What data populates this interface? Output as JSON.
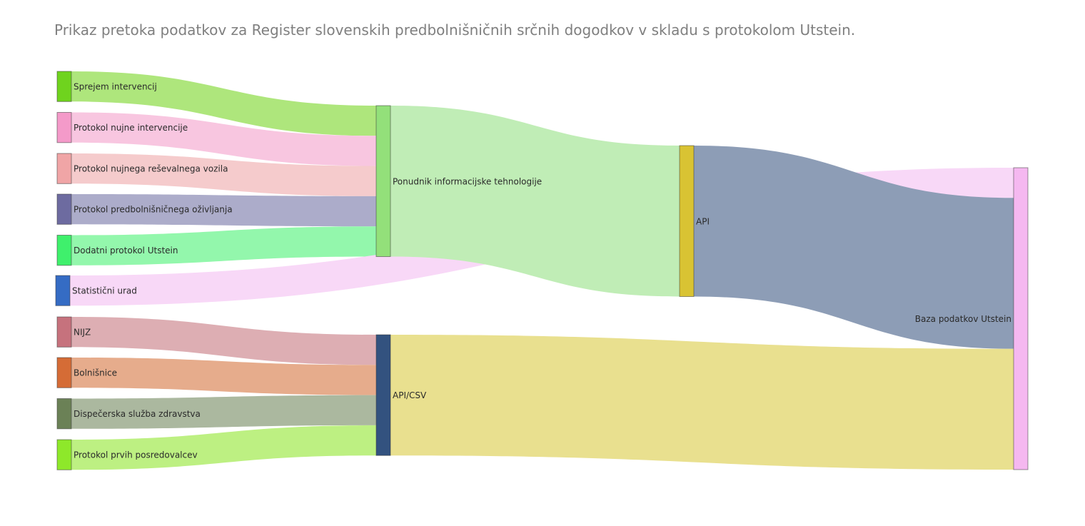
{
  "title": "Prikaz pretoka podatkov za Register slovenskih predbolnišničnih srčnih dogodkov v skladu s protokolom Utstein.",
  "chart_data": {
    "type": "sankey",
    "title": "Prikaz pretoka podatkov za Register slovenskih predbolnišničnih srčnih dogodkov v skladu s protokolom Utstein.",
    "nodes": [
      {
        "id": "sprejem",
        "label": "Sprejem intervencij",
        "color": "#6fd31e"
      },
      {
        "id": "nujne",
        "label": "Protokol nujne intervencije",
        "color": "#f49ac9"
      },
      {
        "id": "vozila",
        "label": "Protokol nujnega reševalnega vozila",
        "color": "#f0a5a6"
      },
      {
        "id": "ozivljanja",
        "label": "Protokol predbolnišničnega oživljanja",
        "color": "#6d6ba0"
      },
      {
        "id": "dodatni",
        "label": "Dodatni protokol Utstein",
        "color": "#3ff06c"
      },
      {
        "id": "statisticni",
        "label": "Statistični urad",
        "color": "#356cc4"
      },
      {
        "id": "nijz",
        "label": "NIJZ",
        "color": "#c6727d"
      },
      {
        "id": "bolnisnice",
        "label": "Bolnišnice",
        "color": "#d56c36"
      },
      {
        "id": "dispecerska",
        "label": "Dispečerska služba zdravstva",
        "color": "#6b8156"
      },
      {
        "id": "posredovalci",
        "label": "Protokol prvih posredovalcev",
        "color": "#8ee82a"
      },
      {
        "id": "ponudnik",
        "label": "Ponudnik informacijske tehnologije",
        "color": "#93e07a"
      },
      {
        "id": "apicsv",
        "label": "API/CSV",
        "color": "#33527f"
      },
      {
        "id": "api",
        "label": "API",
        "color": "#d9c333"
      },
      {
        "id": "baza",
        "label": "Baza podatkov Utstein",
        "color": "#f5b8f0"
      }
    ],
    "links": [
      {
        "source": "sprejem",
        "target": "ponudnik",
        "value": 1,
        "color": "#aee67c"
      },
      {
        "source": "nujne",
        "target": "ponudnik",
        "value": 1,
        "color": "#f8c6e0"
      },
      {
        "source": "vozila",
        "target": "ponudnik",
        "value": 1,
        "color": "#f5cbcc"
      },
      {
        "source": "ozivljanja",
        "target": "ponudnik",
        "value": 1,
        "color": "#acacca"
      },
      {
        "source": "dodatni",
        "target": "ponudnik",
        "value": 1,
        "color": "#93f7ac"
      },
      {
        "source": "statisticni",
        "target": "baza",
        "value": 1,
        "color": "#f8d8f7"
      },
      {
        "source": "nijz",
        "target": "apicsv",
        "value": 1,
        "color": "#ddaeb3"
      },
      {
        "source": "bolnisnice",
        "target": "apicsv",
        "value": 1,
        "color": "#e6ac8c"
      },
      {
        "source": "dispecerska",
        "target": "apicsv",
        "value": 1,
        "color": "#abb89f"
      },
      {
        "source": "posredovalci",
        "target": "apicsv",
        "value": 1,
        "color": "#bdf082"
      },
      {
        "source": "ponudnik",
        "target": "api",
        "value": 5,
        "color": "#c0edb6"
      },
      {
        "source": "api",
        "target": "baza",
        "value": 5,
        "color": "#8d9db6"
      },
      {
        "source": "apicsv",
        "target": "baza",
        "value": 4,
        "color": "#e9e08f"
      }
    ]
  }
}
